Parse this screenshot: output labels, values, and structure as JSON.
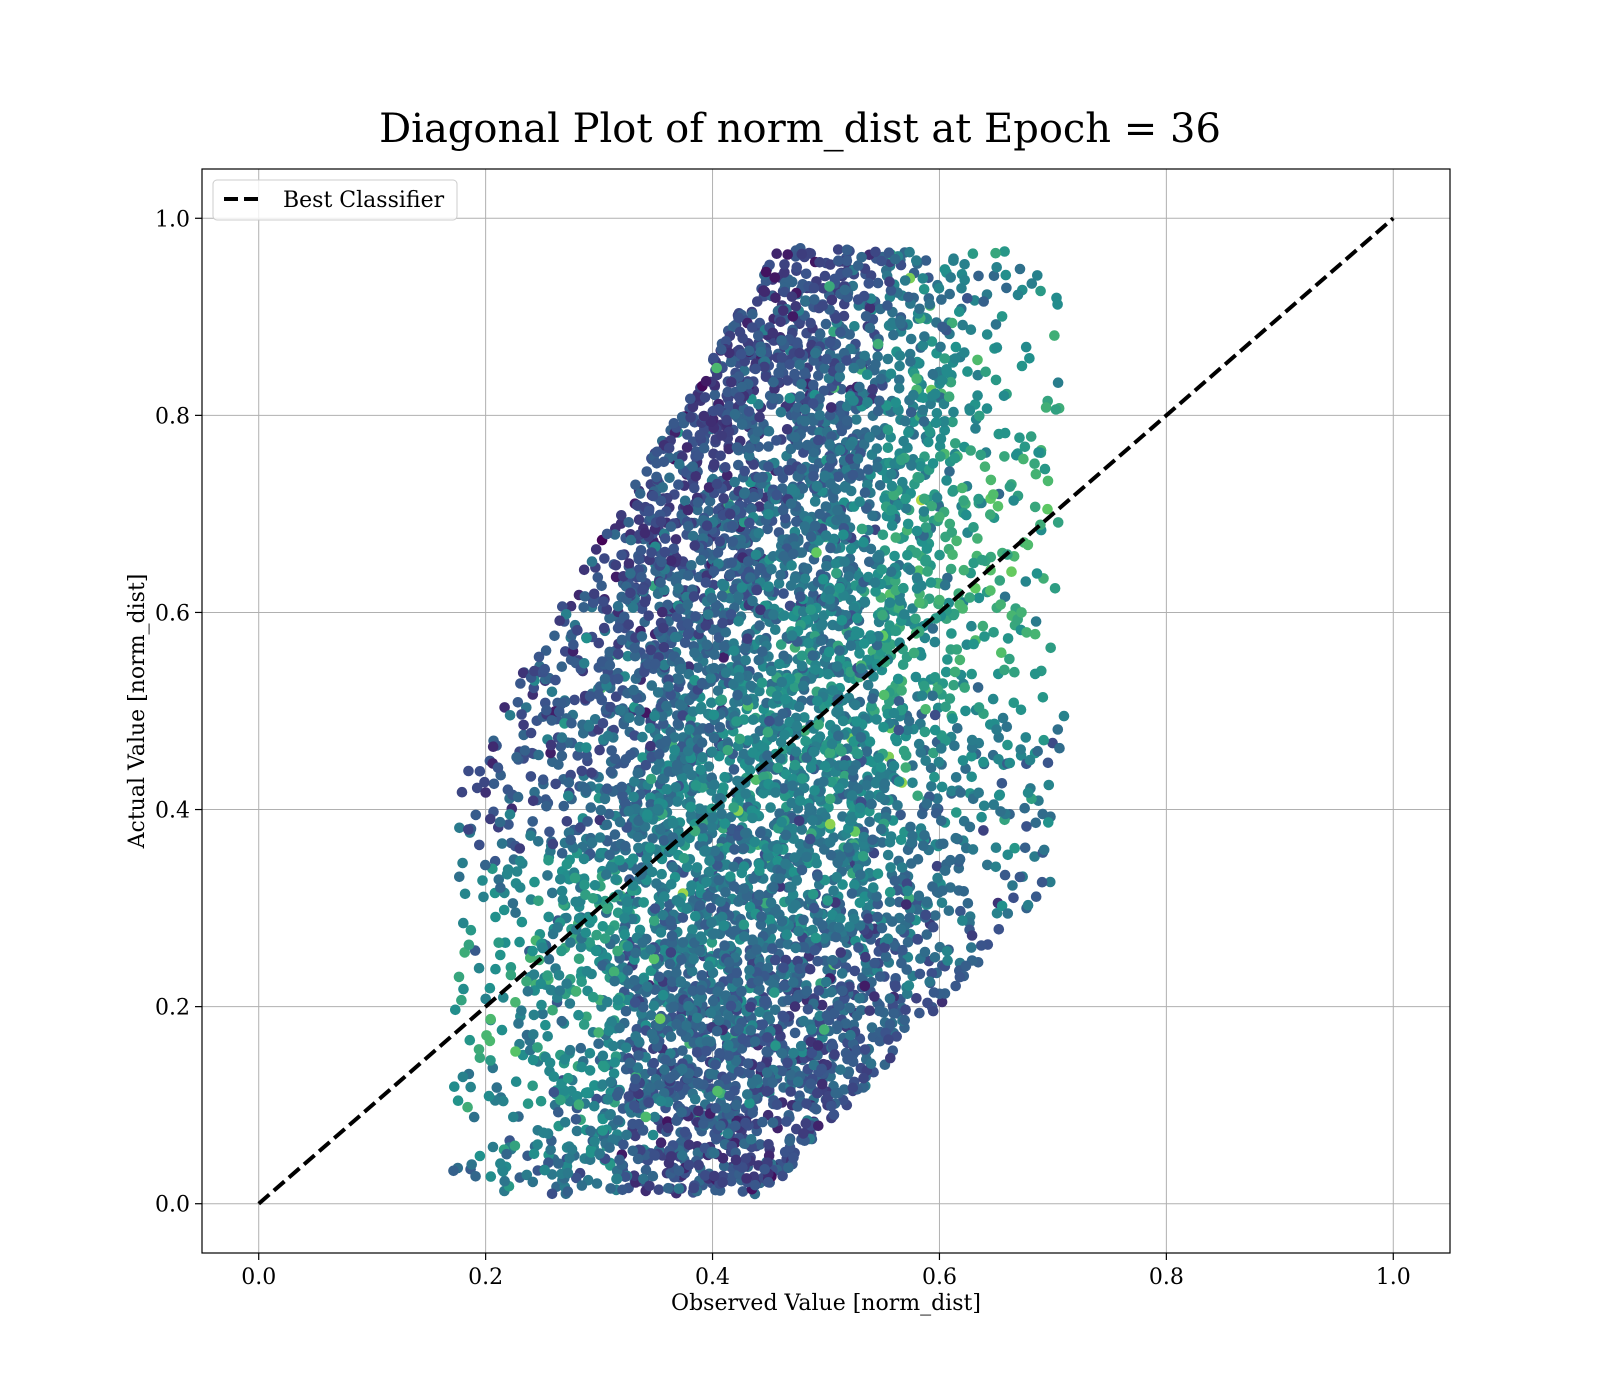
{
  "chart_data": {
    "type": "scatter",
    "title": "Diagonal Plot of norm_dist at Epoch = 36",
    "xlabel": "Observed Value [norm_dist]",
    "ylabel": "Actual Value [norm_dist]",
    "xlim": [
      -0.05,
      1.05
    ],
    "ylim": [
      -0.05,
      1.05
    ],
    "xticks": [
      "0.0",
      "0.2",
      "0.4",
      "0.6",
      "0.8",
      "1.0"
    ],
    "yticks": [
      "0.0",
      "0.2",
      "0.4",
      "0.6",
      "0.8",
      "1.0"
    ],
    "grid": true,
    "legend": {
      "placement": "upper-left",
      "entries": [
        "Best Classifier"
      ]
    },
    "reference_line": {
      "name": "Best Classifier",
      "x": [
        0.0,
        1.0
      ],
      "y": [
        0.0,
        1.0
      ],
      "style": "dashed",
      "color": "#000000"
    },
    "colormap": "viridis",
    "point_density_description": "dense cloud of thousands of points; x spans ~0.17-0.71, y spans ~0.01-0.97",
    "points": {
      "x_range": [
        0.17,
        0.71
      ],
      "y_range": [
        0.01,
        0.97
      ],
      "n_approx": 6000
    },
    "colors": {
      "dark_purple": "#440154",
      "blue_purple": "#3b528b",
      "teal": "#21918c",
      "green": "#5ec962",
      "yellow": "#fde725"
    }
  }
}
